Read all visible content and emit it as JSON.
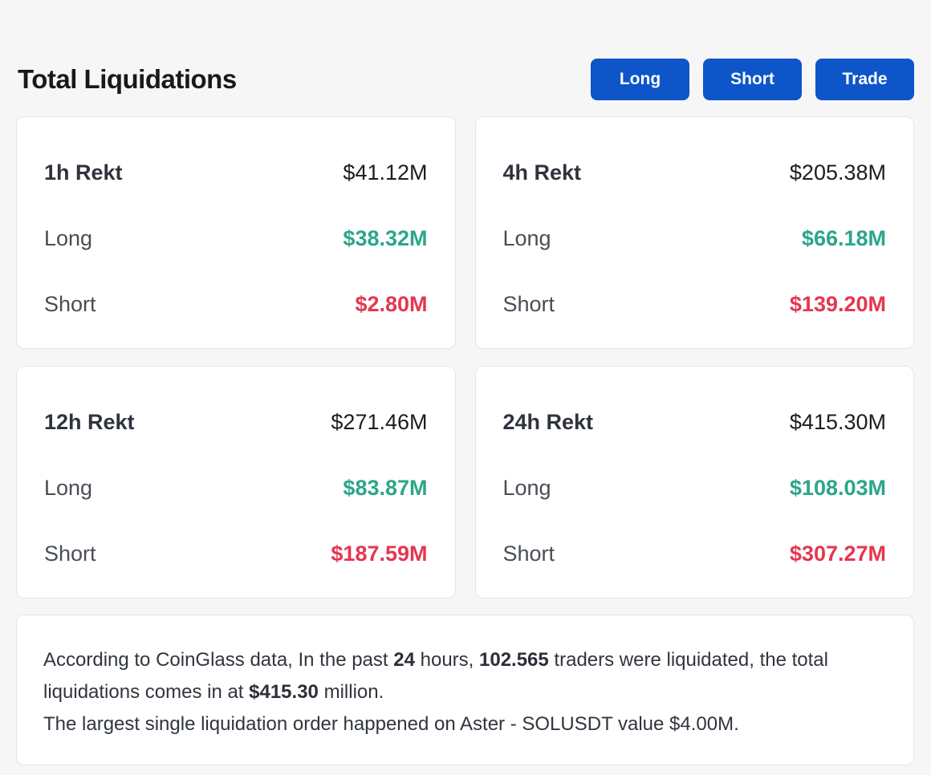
{
  "title": "Total Liquidations",
  "buttons": {
    "long": "Long",
    "short": "Short",
    "trade": "Trade"
  },
  "cards": [
    {
      "period": "1h Rekt",
      "total": "$41.12M",
      "long_label": "Long",
      "long_value": "$38.32M",
      "short_label": "Short",
      "short_value": "$2.80M"
    },
    {
      "period": "4h Rekt",
      "total": "$205.38M",
      "long_label": "Long",
      "long_value": "$66.18M",
      "short_label": "Short",
      "short_value": "$139.20M"
    },
    {
      "period": "12h Rekt",
      "total": "$271.46M",
      "long_label": "Long",
      "long_value": "$83.87M",
      "short_label": "Short",
      "short_value": "$187.59M"
    },
    {
      "period": "24h Rekt",
      "total": "$415.30M",
      "long_label": "Long",
      "long_value": "$108.03M",
      "short_label": "Short",
      "short_value": "$307.27M"
    }
  ],
  "note": {
    "p1": {
      "s1": "According to CoinGlass data, In the past ",
      "b1": "24",
      "s2": " hours, ",
      "b2": "102.565",
      "s3": " traders were liquidated, the total liquidations comes in at ",
      "b3": "$415.30",
      "s4": " million."
    },
    "p2": "The largest single liquidation order happened on Aster - SOLUSDT value $4.00M."
  },
  "colors": {
    "accent_blue": "#0d55c9",
    "long_green": "#2ba689",
    "short_red": "#e5364f",
    "page_background": "#f6f6f7"
  }
}
